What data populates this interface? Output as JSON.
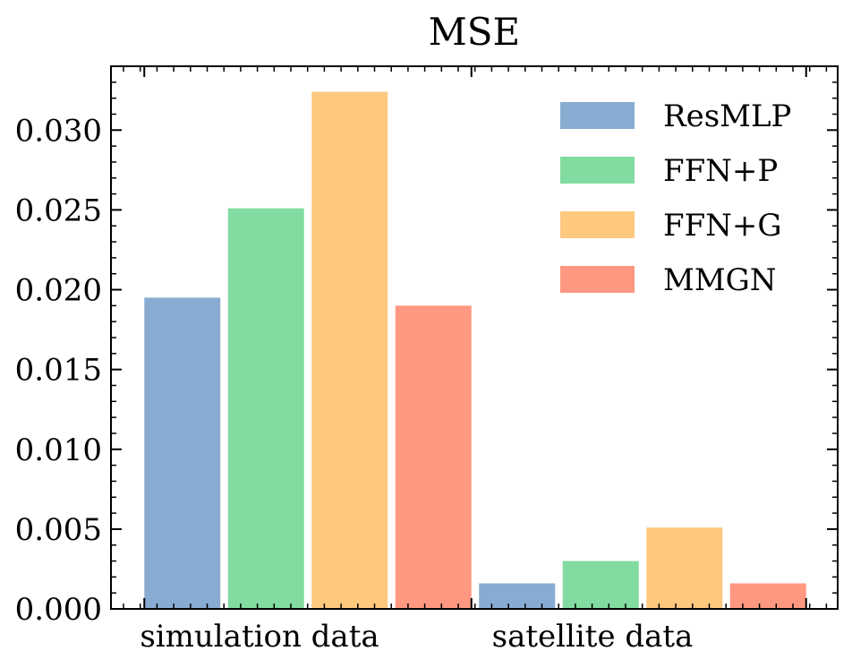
{
  "chart_data": {
    "type": "bar",
    "title": "MSE",
    "xlabel": "",
    "ylabel": "",
    "categories": [
      "simulation data",
      "satellite data"
    ],
    "series": [
      {
        "name": "ResMLP",
        "values": [
          0.0195,
          0.0016
        ],
        "color": "#88acd1"
      },
      {
        "name": "FFN+P",
        "values": [
          0.0251,
          0.003
        ],
        "color": "#82dba0"
      },
      {
        "name": "FFN+G",
        "values": [
          0.0324,
          0.0051
        ],
        "color": "#fec87f"
      },
      {
        "name": "MMGN",
        "values": [
          0.019,
          0.0016
        ],
        "color": "#ff9881"
      }
    ],
    "ylim": [
      0,
      0.034
    ],
    "yticks": [
      0.0,
      0.005,
      0.01,
      0.015,
      0.02,
      0.025,
      0.03
    ],
    "ytick_labels": [
      "0.000",
      "0.005",
      "0.010",
      "0.015",
      "0.020",
      "0.025",
      "0.030"
    ],
    "grid": false,
    "legend_position": "top-right"
  }
}
